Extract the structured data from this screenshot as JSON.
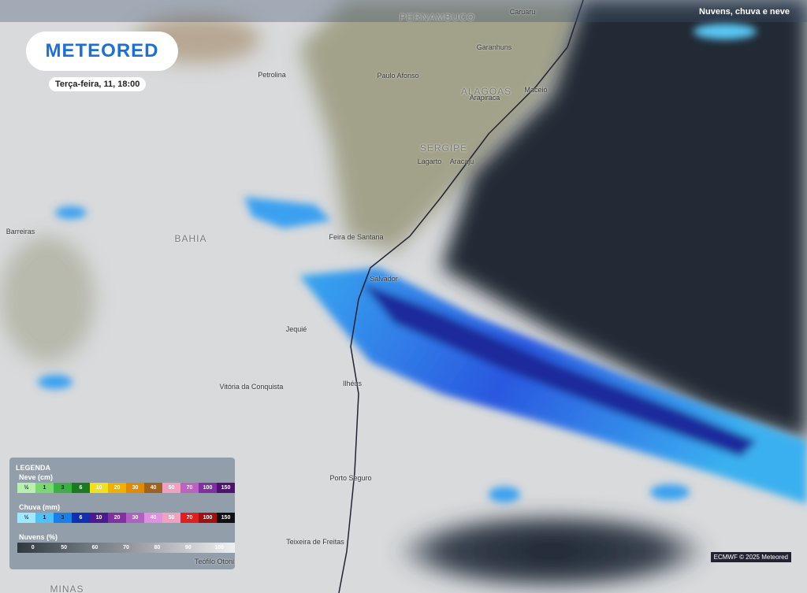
{
  "header": {
    "logo": "METEORED",
    "date": "Terça-feira, 11, 18:00",
    "layer": "Nuvens, chuva e neve"
  },
  "map": {
    "places": [
      "PERNAMBUCO",
      "Caruaru",
      "Garanhuns",
      "Petrolina",
      "Paulo Afonso",
      "ALAGOAS",
      "Arapiraca",
      "Maceió",
      "SERGIPE",
      "Lagarto",
      "Aracaju",
      "Barreiras",
      "BAHIA",
      "Feira de Santana",
      "Salvador",
      "Jequié",
      "Vitória da Conquista",
      "Ilhéus",
      "Porto Seguro",
      "Teixeira de Freitas",
      "Teófilo Otoni",
      "MINAS"
    ],
    "credit": "ECMWF © 2025 Meteored"
  },
  "legend": {
    "title": "LEGENDA",
    "snow": {
      "label": "Neve (cm)",
      "steps": [
        "½",
        1,
        3,
        6,
        10,
        20,
        30,
        40,
        50,
        70,
        100,
        150
      ]
    },
    "rain": {
      "label": "Chuva (mm)",
      "steps": [
        "½",
        1,
        3,
        6,
        10,
        20,
        30,
        40,
        50,
        70,
        100,
        150
      ]
    },
    "clouds": {
      "label": "Nuvens (%)",
      "steps": [
        0,
        50,
        60,
        70,
        80,
        90,
        100
      ]
    }
  }
}
